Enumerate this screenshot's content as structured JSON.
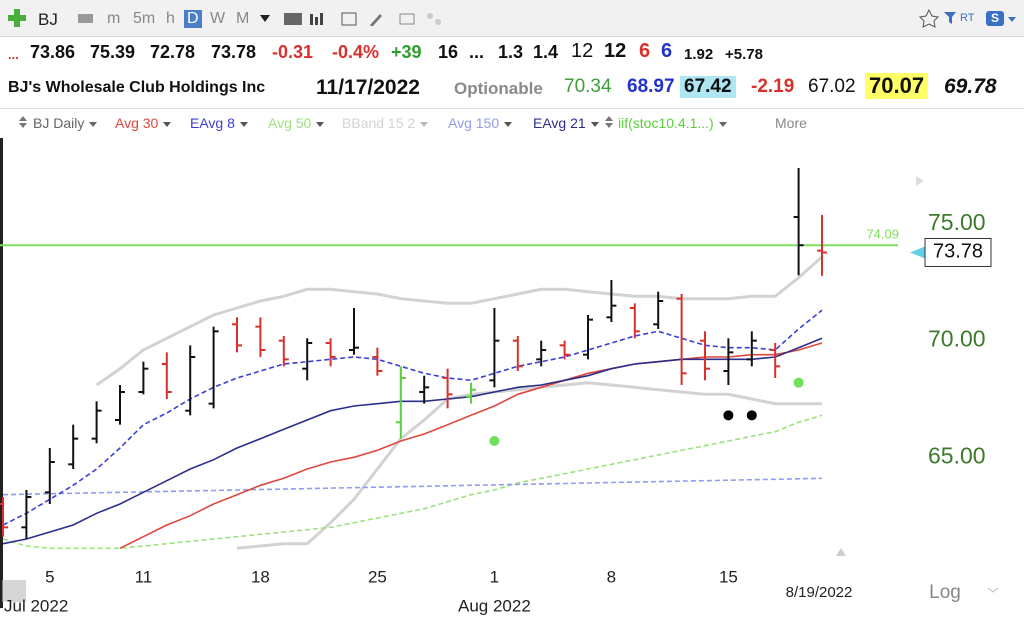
{
  "toolbar": {
    "symbol": "BJ",
    "intervals": [
      "m",
      "5m",
      "h",
      "D",
      "W",
      "M"
    ],
    "rt": "RT"
  },
  "quote": {
    "row1": [
      "...",
      "73.86",
      "75.39",
      "72.78",
      "73.78",
      "-0.31",
      "-0.4%",
      "+39",
      "16",
      "...",
      "1.3",
      "1.4",
      "12",
      "12",
      "6",
      "6",
      "1.92",
      "+5.78"
    ],
    "row2": [
      "BJ's Wholesale Club Holdings Inc",
      "11/17/2022",
      "Optionable",
      "70.34",
      "68.97",
      "67.42",
      "-2.19",
      "67.02",
      "70.07",
      "69.78"
    ]
  },
  "chart_data": {
    "type": "ohlc",
    "name": "BJ Daily",
    "more_label": "More",
    "categories": [
      null,
      null,
      "5",
      null,
      null,
      null,
      "11",
      null,
      null,
      null,
      null,
      "18",
      null,
      null,
      null,
      null,
      "25",
      null,
      null,
      null,
      null,
      "1",
      null,
      null,
      null,
      null,
      "8",
      null,
      null,
      null,
      null,
      "15",
      null,
      null,
      null,
      null
    ],
    "month_labels": [
      {
        "index": 0,
        "label": "Jul 2022"
      },
      {
        "index": 21,
        "label": "Aug 2022"
      }
    ],
    "date_label": "8/19/2022",
    "scale_label": "Log",
    "log_scale": false,
    "ylim": [
      60.6,
      78.6
    ],
    "yticks": [
      {
        "value": 65,
        "label": "65.00"
      },
      {
        "value": 70,
        "label": "70.00"
      },
      {
        "value": 75,
        "label": "75.00"
      }
    ],
    "tick_color": "#3d7a2c",
    "reference_line": {
      "value": 74.09,
      "color": "#7ee05a"
    },
    "bars": [
      {
        "open": 63.0,
        "high": 63.3,
        "low": 61.6,
        "close": 62.0,
        "color": "#d9302c"
      },
      {
        "open": 62.0,
        "high": 63.6,
        "low": 61.5,
        "close": 63.3,
        "color": "#111111"
      },
      {
        "open": 63.5,
        "high": 65.4,
        "low": 63.0,
        "close": 64.8,
        "color": "#111111"
      },
      {
        "open": 64.7,
        "high": 66.4,
        "low": 64.5,
        "close": 65.8,
        "color": "#111111"
      },
      {
        "open": 65.8,
        "high": 67.4,
        "low": 65.6,
        "close": 67.0,
        "color": "#111111"
      },
      {
        "open": 66.6,
        "high": 68.1,
        "low": 66.4,
        "close": 67.8,
        "color": "#111111"
      },
      {
        "open": 67.8,
        "high": 69.1,
        "low": 67.7,
        "close": 68.8,
        "color": "#111111"
      },
      {
        "open": 69.0,
        "high": 69.5,
        "low": 67.5,
        "close": 67.8,
        "color": "#d9302c"
      },
      {
        "open": 67.0,
        "high": 69.8,
        "low": 66.8,
        "close": 69.3,
        "color": "#111111"
      },
      {
        "open": 67.3,
        "high": 70.6,
        "low": 67.1,
        "close": 70.4,
        "color": "#111111"
      },
      {
        "open": 70.7,
        "high": 71.0,
        "low": 69.5,
        "close": 69.8,
        "color": "#d9302c"
      },
      {
        "open": 70.6,
        "high": 71.0,
        "low": 69.3,
        "close": 69.6,
        "color": "#d9302c"
      },
      {
        "open": 70.0,
        "high": 70.2,
        "low": 68.9,
        "close": 69.2,
        "color": "#d9302c"
      },
      {
        "open": 68.8,
        "high": 70.1,
        "low": 68.3,
        "close": 69.9,
        "color": "#111111"
      },
      {
        "open": 69.9,
        "high": 70.1,
        "low": 68.9,
        "close": 69.3,
        "color": "#d9302c"
      },
      {
        "open": 69.6,
        "high": 71.4,
        "low": 69.4,
        "close": 69.7,
        "color": "#111111"
      },
      {
        "open": 69.3,
        "high": 69.7,
        "low": 68.5,
        "close": 68.7,
        "color": "#d9302c"
      },
      {
        "open": 66.5,
        "high": 68.9,
        "low": 65.8,
        "close": 68.4,
        "color": "#5ccf3c"
      },
      {
        "open": 67.8,
        "high": 68.5,
        "low": 67.3,
        "close": 68.0,
        "color": "#111111"
      },
      {
        "open": 68.4,
        "high": 68.8,
        "low": 67.1,
        "close": 67.7,
        "color": "#d9302c"
      },
      {
        "open": 67.6,
        "high": 68.2,
        "low": 67.3,
        "close": 67.9,
        "color": "#5ccf3c"
      },
      {
        "open": 68.3,
        "high": 71.4,
        "low": 68.0,
        "close": 70.0,
        "color": "#111111"
      },
      {
        "open": 70.0,
        "high": 70.2,
        "low": 68.7,
        "close": 68.9,
        "color": "#d9302c"
      },
      {
        "open": 69.2,
        "high": 70.0,
        "low": 68.9,
        "close": 69.6,
        "color": "#111111"
      },
      {
        "open": 69.8,
        "high": 70.0,
        "low": 69.2,
        "close": 69.4,
        "color": "#d9302c"
      },
      {
        "open": 69.4,
        "high": 71.1,
        "low": 69.2,
        "close": 70.9,
        "color": "#111111"
      },
      {
        "open": 71.0,
        "high": 72.6,
        "low": 70.8,
        "close": 71.5,
        "color": "#111111"
      },
      {
        "open": 71.4,
        "high": 71.6,
        "low": 70.1,
        "close": 70.4,
        "color": "#d9302c"
      },
      {
        "open": 70.7,
        "high": 72.1,
        "low": 70.5,
        "close": 71.7,
        "color": "#111111"
      },
      {
        "open": 71.8,
        "high": 72.0,
        "low": 68.1,
        "close": 68.6,
        "color": "#d9302c"
      },
      {
        "open": 70.0,
        "high": 70.4,
        "low": 68.3,
        "close": 68.8,
        "color": "#d9302c"
      },
      {
        "open": 68.7,
        "high": 70.1,
        "low": 68.1,
        "close": 69.5,
        "color": "#111111"
      },
      {
        "open": 69.2,
        "high": 70.4,
        "low": 68.9,
        "close": 70.0,
        "color": "#111111"
      },
      {
        "open": 69.6,
        "high": 69.9,
        "low": 68.4,
        "close": 68.9,
        "color": "#d9302c"
      },
      {
        "open": 75.3,
        "high": 77.4,
        "low": 72.8,
        "close": 74.09,
        "color": "#111111"
      },
      {
        "open": 73.86,
        "high": 75.39,
        "low": 72.78,
        "close": 73.78,
        "color": "#d9302c"
      }
    ],
    "series": [
      {
        "name": "Avg 30",
        "color": "#e0473f",
        "dash": false,
        "values": [
          null,
          null,
          null,
          null,
          null,
          61.1,
          61.6,
          62.1,
          62.5,
          63.0,
          63.4,
          63.8,
          64.1,
          64.5,
          64.8,
          65.0,
          65.3,
          65.7,
          66.0,
          66.4,
          66.8,
          67.2,
          67.7,
          68.0,
          68.3,
          68.6,
          68.8,
          69.0,
          69.1,
          69.2,
          69.3,
          69.3,
          69.4,
          69.4,
          69.6,
          69.9
        ]
      },
      {
        "name": "EAvg 8",
        "color": "#3a3fd6",
        "dash": true,
        "values": [
          62.1,
          62.6,
          63.2,
          63.8,
          64.5,
          65.4,
          66.4,
          66.9,
          67.5,
          68.0,
          68.4,
          68.7,
          69.0,
          69.1,
          69.2,
          69.3,
          69.2,
          68.9,
          68.6,
          68.4,
          68.3,
          68.6,
          68.9,
          69.1,
          69.3,
          69.6,
          69.9,
          70.2,
          70.4,
          70.1,
          69.8,
          69.7,
          69.7,
          69.6,
          70.5,
          71.3
        ]
      },
      {
        "name": "Avg 50",
        "color": "#9be27f",
        "dash": true,
        "values": [
          61.5,
          61.2,
          61.1,
          61.1,
          61.1,
          61.1,
          61.2,
          61.3,
          61.4,
          61.5,
          61.6,
          61.7,
          61.8,
          61.9,
          62.0,
          62.2,
          62.4,
          62.6,
          62.8,
          63.1,
          63.4,
          63.6,
          63.9,
          64.1,
          64.3,
          64.5,
          64.7,
          64.9,
          65.1,
          65.3,
          65.5,
          65.7,
          65.9,
          66.1,
          66.5,
          66.8
        ]
      },
      {
        "name": "BBand 15 2",
        "color": "#d2d2d2",
        "dash": false,
        "values": [
          null,
          null,
          null,
          null,
          68.1,
          68.8,
          69.6,
          70.1,
          70.6,
          71.1,
          71.4,
          71.7,
          71.9,
          72.2,
          72.2,
          72.1,
          72.0,
          71.8,
          71.7,
          71.6,
          71.6,
          71.8,
          72.0,
          72.2,
          72.2,
          72.1,
          72.0,
          71.9,
          71.9,
          71.8,
          71.8,
          71.8,
          71.9,
          71.9,
          72.7,
          73.6
        ],
        "lower": [
          null,
          null,
          null,
          null,
          null,
          null,
          null,
          null,
          null,
          null,
          61.1,
          61.2,
          61.3,
          61.3,
          62.2,
          63.2,
          64.5,
          65.8,
          66.6,
          67.5,
          67.7,
          67.8,
          67.9,
          68.0,
          68.1,
          68.2,
          68.1,
          68.0,
          67.9,
          67.8,
          67.7,
          67.7,
          67.5,
          67.3,
          67.3,
          67.3
        ]
      },
      {
        "name": "Avg 150",
        "color": "#8f9cf0",
        "dash": true,
        "values": [
          63.4,
          63.42,
          63.44,
          63.46,
          63.48,
          63.5,
          63.52,
          63.54,
          63.56,
          63.58,
          63.6,
          63.62,
          63.64,
          63.66,
          63.68,
          63.7,
          63.72,
          63.74,
          63.76,
          63.78,
          63.8,
          63.82,
          63.84,
          63.86,
          63.88,
          63.9,
          63.92,
          63.94,
          63.96,
          63.98,
          64.0,
          64.02,
          64.04,
          64.06,
          64.08,
          64.1
        ]
      },
      {
        "name": "EAvg 21",
        "color": "#2b2f8c",
        "dash": false,
        "values": [
          61.3,
          61.5,
          61.8,
          62.1,
          62.6,
          63.0,
          63.5,
          64.0,
          64.5,
          64.9,
          65.4,
          65.8,
          66.2,
          66.6,
          67.0,
          67.2,
          67.3,
          67.4,
          67.4,
          67.5,
          67.6,
          67.8,
          68.0,
          68.1,
          68.3,
          68.5,
          68.8,
          69.0,
          69.1,
          69.2,
          69.2,
          69.2,
          69.2,
          69.3,
          69.7,
          70.1
        ]
      }
    ],
    "signals": {
      "name": "iif(stoc10.4.1...)",
      "color": "#5ccf3c",
      "points": [
        {
          "index": 21,
          "value": 65.7,
          "color": "#6fe05a"
        },
        {
          "index": 31,
          "value": 66.8,
          "color": "#000000"
        },
        {
          "index": 32,
          "value": 66.8,
          "color": "#000000"
        },
        {
          "index": 34,
          "value": 68.2,
          "color": "#6fe05a"
        }
      ]
    }
  }
}
